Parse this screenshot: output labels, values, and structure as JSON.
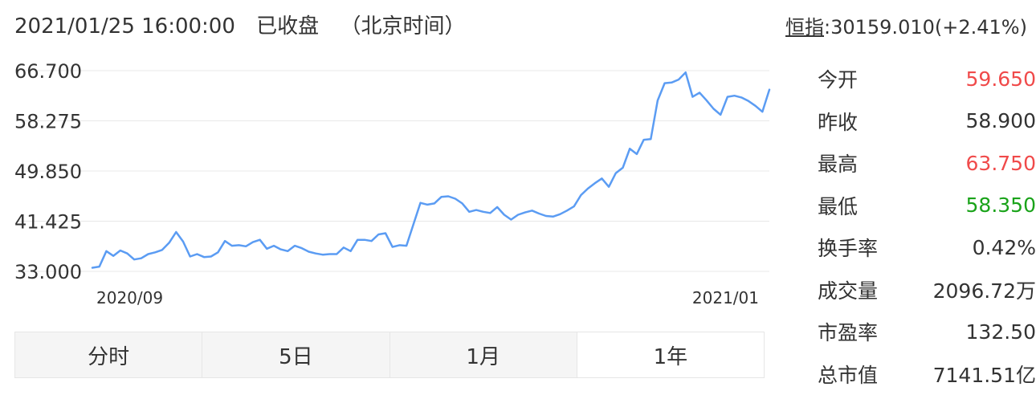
{
  "header": {
    "datetime": "2021/01/25 16:00:00",
    "status": "已收盘",
    "timezone": "（北京时间）"
  },
  "index_info": {
    "label": "恒指",
    "value": ":30159.010(+2.41%)"
  },
  "colors": {
    "line": "#5b9cf3",
    "up": "#f04a4a",
    "down": "#1aa31a",
    "grid": "#e8e8e8",
    "text": "#333333"
  },
  "chart_data": {
    "type": "line",
    "y_ticks": [
      "66.700",
      "58.275",
      "49.850",
      "41.425",
      "33.000"
    ],
    "ylim": [
      33.0,
      66.7
    ],
    "x_ticks": [
      "2020/09",
      "2021/01"
    ],
    "grid": true,
    "series": [
      {
        "values": [
          33.6,
          33.8,
          36.4,
          35.6,
          36.5,
          36.0,
          35.0,
          35.2,
          35.9,
          36.2,
          36.6,
          37.8,
          39.6,
          38.0,
          35.5,
          35.9,
          35.4,
          35.5,
          36.2,
          38.1,
          37.3,
          37.4,
          37.2,
          37.9,
          38.3,
          36.8,
          37.3,
          36.7,
          36.4,
          37.3,
          36.9,
          36.3,
          36.0,
          35.8,
          35.9,
          35.9,
          37.0,
          36.4,
          38.3,
          38.3,
          38.1,
          39.2,
          39.4,
          37.1,
          37.4,
          37.3,
          40.9,
          44.5,
          44.2,
          44.4,
          45.5,
          45.6,
          45.2,
          44.4,
          43.0,
          43.3,
          43.0,
          42.8,
          43.8,
          42.5,
          41.7,
          42.5,
          42.9,
          43.2,
          42.7,
          42.3,
          42.2,
          42.6,
          43.2,
          43.9,
          45.8,
          46.9,
          47.8,
          48.6,
          47.2,
          49.5,
          50.4,
          53.6,
          52.7,
          55.1,
          55.2,
          61.7,
          64.6,
          64.7,
          65.2,
          66.4,
          62.3,
          63.0,
          61.7,
          60.3,
          59.3,
          62.3,
          62.5,
          62.2,
          61.6,
          60.8,
          59.8,
          63.5
        ]
      }
    ]
  },
  "tabs": [
    {
      "label": "分时",
      "active": false
    },
    {
      "label": "5日",
      "active": false
    },
    {
      "label": "1月",
      "active": false
    },
    {
      "label": "1年",
      "active": true
    }
  ],
  "stats": [
    {
      "label": "今开",
      "value": "59.650",
      "color": "#f04a4a"
    },
    {
      "label": "昨收",
      "value": "58.900",
      "color": "#333333"
    },
    {
      "label": "最高",
      "value": "63.750",
      "color": "#f04a4a"
    },
    {
      "label": "最低",
      "value": "58.350",
      "color": "#1aa31a"
    },
    {
      "label": "换手率",
      "value": "0.42%",
      "color": "#333333"
    },
    {
      "label": "成交量",
      "value": "2096.72万",
      "color": "#333333"
    },
    {
      "label": "市盈率",
      "value": "132.50",
      "color": "#333333"
    },
    {
      "label": "总市值",
      "value": "7141.51亿",
      "color": "#333333"
    }
  ]
}
